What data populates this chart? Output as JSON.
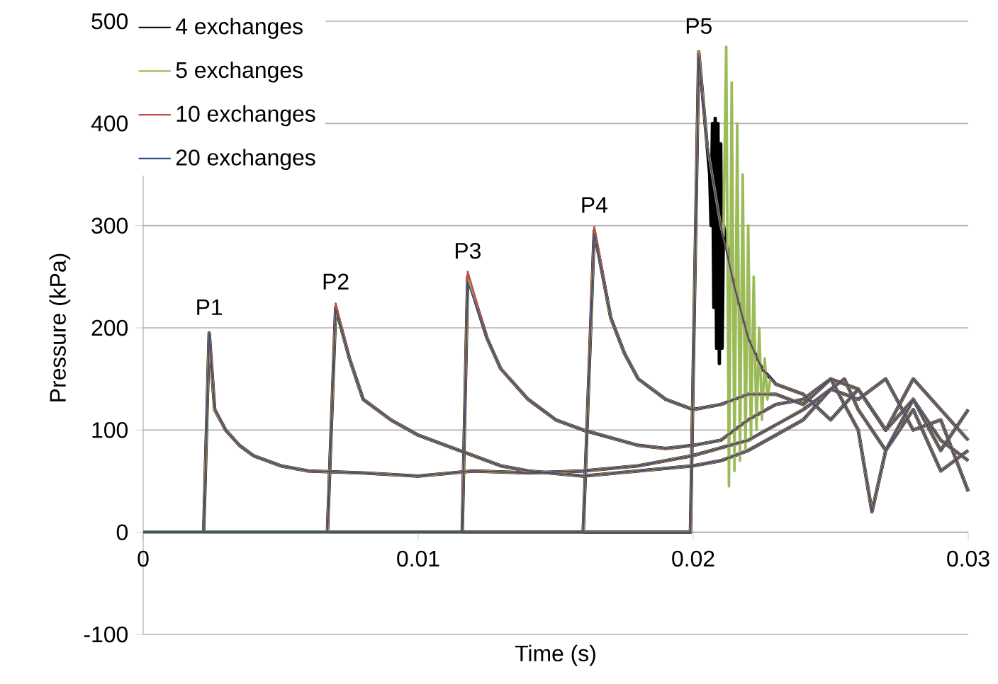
{
  "chart_data": {
    "type": "line",
    "xlabel": "Time (s)",
    "ylabel": "Pressure (kPa)",
    "xlim": [
      0,
      0.03
    ],
    "ylim": [
      -100,
      500
    ],
    "xticks": [
      0,
      0.01,
      0.02,
      0.03
    ],
    "yticks": [
      -100,
      0,
      100,
      200,
      300,
      400,
      500
    ],
    "grid": "y",
    "legend": "top left",
    "annotations": [
      {
        "text": "P1",
        "x": 0.0024,
        "y": 195
      },
      {
        "text": "P2",
        "x": 0.007,
        "y": 220
      },
      {
        "text": "P3",
        "x": 0.0118,
        "y": 250
      },
      {
        "text": "P4",
        "x": 0.0164,
        "y": 295
      },
      {
        "text": "P5",
        "x": 0.0202,
        "y": 470
      }
    ],
    "series": [
      {
        "name": "4 exchanges",
        "color": "#000000",
        "x": [
          0,
          0.0022,
          0.0024,
          0.0026,
          0.003,
          0.0035,
          0.004,
          0.005,
          0.006,
          0.008,
          0.01,
          0.012,
          0.014,
          0.016,
          0.018,
          0.02,
          0.022,
          0.024,
          0.025,
          0.026,
          0.027,
          0.028,
          0.029,
          0.03
        ],
        "values": [
          0,
          0,
          195,
          120,
          100,
          85,
          75,
          65,
          60,
          58,
          55,
          60,
          58,
          60,
          65,
          75,
          90,
          120,
          140,
          130,
          150,
          100,
          110,
          40
        ]
      },
      {
        "color": "#000000",
        "x": [
          0,
          0.0067,
          0.007,
          0.0075,
          0.008,
          0.009,
          0.01,
          0.011,
          0.012,
          0.013,
          0.014,
          0.016,
          0.018,
          0.02,
          0.021,
          0.022,
          0.023,
          0.024,
          0.025,
          0.0255,
          0.026,
          0.027,
          0.028,
          0.029,
          0.03
        ],
        "values": [
          0,
          0,
          220,
          170,
          130,
          110,
          95,
          85,
          75,
          65,
          60,
          55,
          60,
          65,
          70,
          80,
          95,
          110,
          140,
          150,
          120,
          80,
          130,
          90,
          70
        ]
      },
      {
        "color": "#000000",
        "x": [
          0,
          0.0116,
          0.0118,
          0.0125,
          0.013,
          0.014,
          0.015,
          0.016,
          0.018,
          0.019,
          0.02,
          0.021,
          0.022,
          0.023,
          0.024,
          0.025,
          0.026,
          0.0265,
          0.027,
          0.028,
          0.029,
          0.03
        ],
        "values": [
          0,
          0,
          250,
          190,
          160,
          130,
          110,
          100,
          85,
          82,
          85,
          90,
          110,
          125,
          130,
          150,
          100,
          20,
          80,
          120,
          60,
          80
        ]
      },
      {
        "color": "#000000",
        "x": [
          0,
          0.016,
          0.0164,
          0.017,
          0.0175,
          0.018,
          0.019,
          0.02,
          0.021,
          0.022,
          0.023,
          0.024,
          0.025,
          0.026,
          0.027,
          0.028,
          0.029,
          0.03
        ],
        "values": [
          0,
          0,
          295,
          210,
          175,
          150,
          130,
          120,
          125,
          135,
          135,
          125,
          150,
          140,
          100,
          150,
          120,
          90
        ]
      },
      {
        "color": "#000000",
        "x": [
          0,
          0.0199,
          0.0202,
          0.0205,
          0.0206,
          0.02065,
          0.0207,
          0.02075,
          0.0208,
          0.02085,
          0.0209,
          0.02095,
          0.021,
          0.02105,
          0.0211,
          0.0215,
          0.022,
          0.0225,
          0.023,
          0.024,
          0.025,
          0.026,
          0.027,
          0.028,
          0.029,
          0.03
        ],
        "values": [
          0,
          0,
          470,
          380,
          350,
          300,
          400,
          220,
          405,
          180,
          400,
          165,
          380,
          180,
          300,
          240,
          190,
          160,
          145,
          135,
          110,
          140,
          100,
          130,
          80,
          120
        ]
      },
      {
        "name": "5 exchanges",
        "color": "#9bbb59",
        "x": [
          0,
          0.0022,
          0.0024,
          0.0026,
          0.003,
          0.0035,
          0.004,
          0.005,
          0.006,
          0.008,
          0.01,
          0.012,
          0.014,
          0.016,
          0.018,
          0.02,
          0.022,
          0.024,
          0.025,
          0.026,
          0.027,
          0.028,
          0.029,
          0.03
        ],
        "values": [
          0,
          0,
          195,
          120,
          100,
          85,
          75,
          65,
          60,
          58,
          55,
          60,
          58,
          60,
          65,
          75,
          90,
          120,
          140,
          130,
          150,
          100,
          110,
          40
        ]
      },
      {
        "color": "#9bbb59",
        "x": [
          0,
          0.0067,
          0.007,
          0.0075,
          0.008,
          0.009,
          0.01,
          0.011,
          0.012,
          0.013,
          0.014,
          0.016,
          0.018,
          0.02,
          0.021,
          0.022,
          0.023,
          0.024,
          0.025,
          0.0255,
          0.026,
          0.027,
          0.028,
          0.029,
          0.03
        ],
        "values": [
          0,
          0,
          220,
          170,
          130,
          110,
          95,
          85,
          75,
          65,
          60,
          55,
          60,
          65,
          70,
          80,
          95,
          110,
          140,
          150,
          120,
          80,
          130,
          90,
          70
        ]
      },
      {
        "color": "#9bbb59",
        "x": [
          0,
          0.0116,
          0.0118,
          0.0125,
          0.013,
          0.014,
          0.015,
          0.016,
          0.018,
          0.019,
          0.02,
          0.021,
          0.022,
          0.023,
          0.024,
          0.025,
          0.026,
          0.0265,
          0.027,
          0.028,
          0.029,
          0.03
        ],
        "values": [
          0,
          0,
          250,
          190,
          160,
          130,
          110,
          100,
          85,
          82,
          85,
          90,
          110,
          125,
          130,
          150,
          100,
          20,
          80,
          120,
          60,
          80
        ]
      },
      {
        "color": "#9bbb59",
        "x": [
          0,
          0.016,
          0.0164,
          0.017,
          0.0175,
          0.018,
          0.019,
          0.02,
          0.021,
          0.022,
          0.023,
          0.024,
          0.025,
          0.026,
          0.027,
          0.028,
          0.029,
          0.03
        ],
        "values": [
          0,
          0,
          295,
          210,
          175,
          150,
          130,
          120,
          125,
          135,
          135,
          125,
          150,
          140,
          100,
          150,
          120,
          90
        ]
      },
      {
        "color": "#9bbb59",
        "x": [
          0,
          0.0199,
          0.0202,
          0.0205,
          0.021,
          0.0211,
          0.0212,
          0.0213,
          0.0214,
          0.0215,
          0.0216,
          0.0217,
          0.0218,
          0.0219,
          0.022,
          0.0221,
          0.0222,
          0.0223,
          0.0224,
          0.0225,
          0.0226,
          0.0227,
          0.0228,
          0.023,
          0.024,
          0.025,
          0.026,
          0.027,
          0.028,
          0.029,
          0.03
        ],
        "values": [
          0,
          0,
          470,
          380,
          300,
          290,
          475,
          45,
          440,
          60,
          400,
          70,
          350,
          80,
          300,
          90,
          250,
          100,
          200,
          110,
          170,
          130,
          150,
          145,
          135,
          110,
          140,
          100,
          130,
          80,
          120
        ]
      },
      {
        "name": "10 exchanges",
        "color": "#c0504d",
        "x": [
          0,
          0.0022,
          0.0024,
          0.0026,
          0.003,
          0.0035,
          0.004,
          0.005,
          0.006,
          0.008,
          0.01,
          0.012,
          0.014,
          0.016,
          0.018,
          0.02,
          0.022,
          0.024,
          0.025,
          0.026,
          0.027,
          0.028,
          0.029,
          0.03
        ],
        "values": [
          0,
          0,
          195,
          122,
          100,
          85,
          75,
          65,
          60,
          58,
          55,
          60,
          58,
          60,
          65,
          75,
          90,
          120,
          140,
          130,
          150,
          100,
          110,
          40
        ]
      },
      {
        "color": "#c0504d",
        "x": [
          0,
          0.0067,
          0.007,
          0.0075,
          0.008,
          0.009,
          0.01,
          0.011,
          0.012,
          0.013,
          0.014,
          0.016,
          0.018,
          0.02,
          0.021,
          0.022,
          0.023,
          0.024,
          0.025,
          0.0255,
          0.026,
          0.027,
          0.028,
          0.029,
          0.03
        ],
        "values": [
          0,
          0,
          224,
          170,
          130,
          110,
          95,
          85,
          75,
          65,
          60,
          55,
          60,
          65,
          70,
          80,
          95,
          110,
          140,
          150,
          120,
          80,
          130,
          90,
          70
        ]
      },
      {
        "color": "#c0504d",
        "x": [
          0,
          0.0116,
          0.0118,
          0.0125,
          0.013,
          0.014,
          0.015,
          0.016,
          0.018,
          0.019,
          0.02,
          0.021,
          0.022,
          0.023,
          0.024,
          0.025,
          0.026,
          0.0265,
          0.027,
          0.028,
          0.029,
          0.03
        ],
        "values": [
          0,
          0,
          255,
          190,
          160,
          130,
          110,
          100,
          85,
          82,
          85,
          90,
          110,
          125,
          130,
          150,
          100,
          20,
          80,
          120,
          60,
          80
        ]
      },
      {
        "color": "#c0504d",
        "x": [
          0,
          0.016,
          0.0164,
          0.017,
          0.0175,
          0.018,
          0.019,
          0.02,
          0.021,
          0.022,
          0.023,
          0.024,
          0.025,
          0.026,
          0.027,
          0.028,
          0.029,
          0.03
        ],
        "values": [
          0,
          0,
          299,
          210,
          175,
          150,
          130,
          120,
          125,
          135,
          135,
          125,
          150,
          140,
          100,
          150,
          120,
          90
        ]
      },
      {
        "color": "#c0504d",
        "x": [
          0,
          0.0199,
          0.0202,
          0.0205,
          0.021,
          0.0215,
          0.022,
          0.0225,
          0.023,
          0.024,
          0.025,
          0.026,
          0.027,
          0.028,
          0.029,
          0.03
        ],
        "values": [
          0,
          0,
          468,
          380,
          300,
          240,
          190,
          160,
          145,
          135,
          110,
          140,
          100,
          130,
          80,
          120
        ]
      },
      {
        "name": "20 exchanges",
        "color": "#2f4f8a",
        "x": [
          0,
          0.0022,
          0.0024,
          0.0026,
          0.003,
          0.0035,
          0.004,
          0.005,
          0.006,
          0.008,
          0.01,
          0.012,
          0.014,
          0.016,
          0.018,
          0.02,
          0.022,
          0.024,
          0.025,
          0.026,
          0.027,
          0.028,
          0.029,
          0.03
        ],
        "values": [
          0,
          0,
          195,
          120,
          100,
          85,
          75,
          65,
          60,
          58,
          55,
          60,
          58,
          60,
          65,
          75,
          90,
          120,
          140,
          130,
          150,
          100,
          110,
          40
        ]
      },
      {
        "color": "#2f4f8a",
        "x": [
          0,
          0.0067,
          0.007,
          0.0075,
          0.008,
          0.009,
          0.01,
          0.011,
          0.012,
          0.013,
          0.014,
          0.016,
          0.018,
          0.02,
          0.021,
          0.022,
          0.023,
          0.024,
          0.025,
          0.0255,
          0.026,
          0.027,
          0.028,
          0.029,
          0.03
        ],
        "values": [
          0,
          0,
          218,
          170,
          130,
          110,
          95,
          85,
          75,
          65,
          60,
          55,
          60,
          65,
          70,
          80,
          95,
          110,
          140,
          150,
          120,
          80,
          130,
          90,
          70
        ]
      },
      {
        "color": "#2f4f8a",
        "x": [
          0,
          0.0116,
          0.0118,
          0.0125,
          0.013,
          0.014,
          0.015,
          0.016,
          0.018,
          0.019,
          0.02,
          0.021,
          0.022,
          0.023,
          0.024,
          0.025,
          0.026,
          0.0265,
          0.027,
          0.028,
          0.029,
          0.03
        ],
        "values": [
          0,
          0,
          245,
          190,
          160,
          130,
          110,
          100,
          85,
          82,
          85,
          90,
          110,
          125,
          130,
          150,
          100,
          20,
          80,
          120,
          60,
          80
        ]
      },
      {
        "color": "#2f4f8a",
        "x": [
          0,
          0.016,
          0.0164,
          0.017,
          0.0175,
          0.018,
          0.019,
          0.02,
          0.021,
          0.022,
          0.023,
          0.024,
          0.025,
          0.026,
          0.027,
          0.028,
          0.029,
          0.03
        ],
        "values": [
          0,
          0,
          292,
          210,
          175,
          150,
          130,
          120,
          125,
          135,
          135,
          125,
          150,
          140,
          100,
          150,
          120,
          90
        ]
      },
      {
        "color": "#2f4f8a",
        "x": [
          0,
          0.0199,
          0.0202,
          0.0205,
          0.021,
          0.0215,
          0.022,
          0.0225,
          0.023,
          0.024,
          0.025,
          0.026,
          0.027,
          0.028,
          0.029,
          0.03
        ],
        "values": [
          0,
          0,
          465,
          380,
          300,
          240,
          190,
          160,
          145,
          135,
          110,
          140,
          100,
          130,
          80,
          120
        ]
      }
    ]
  }
}
